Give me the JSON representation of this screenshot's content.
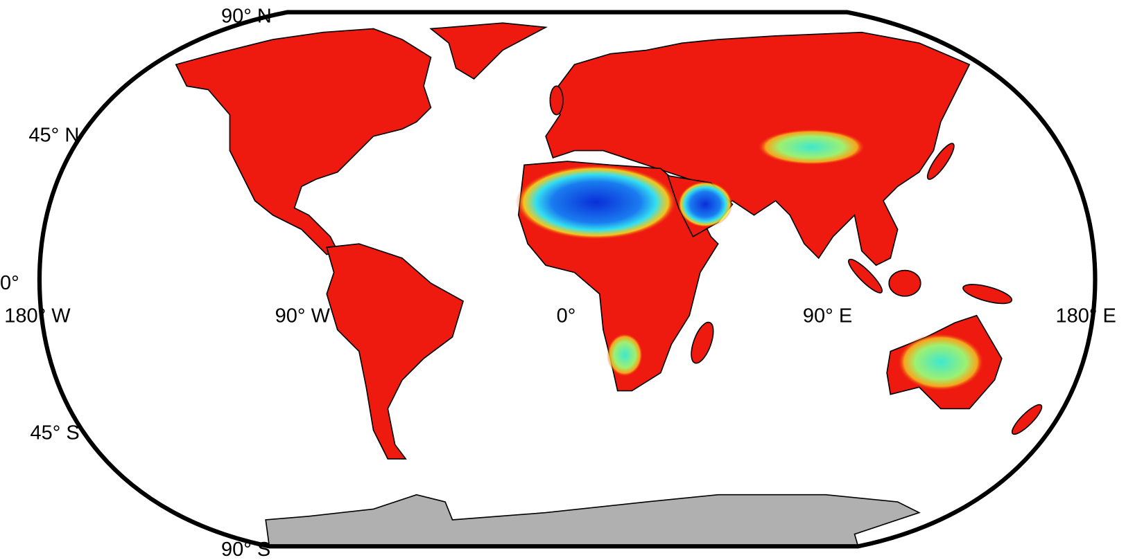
{
  "map": {
    "lat_labels": [
      "90° N",
      "45° N",
      "0°",
      "45° S",
      "90° S"
    ],
    "lon_labels": [
      "180° W",
      "90° W",
      "0°",
      "90° E",
      "180° E"
    ]
  }
}
